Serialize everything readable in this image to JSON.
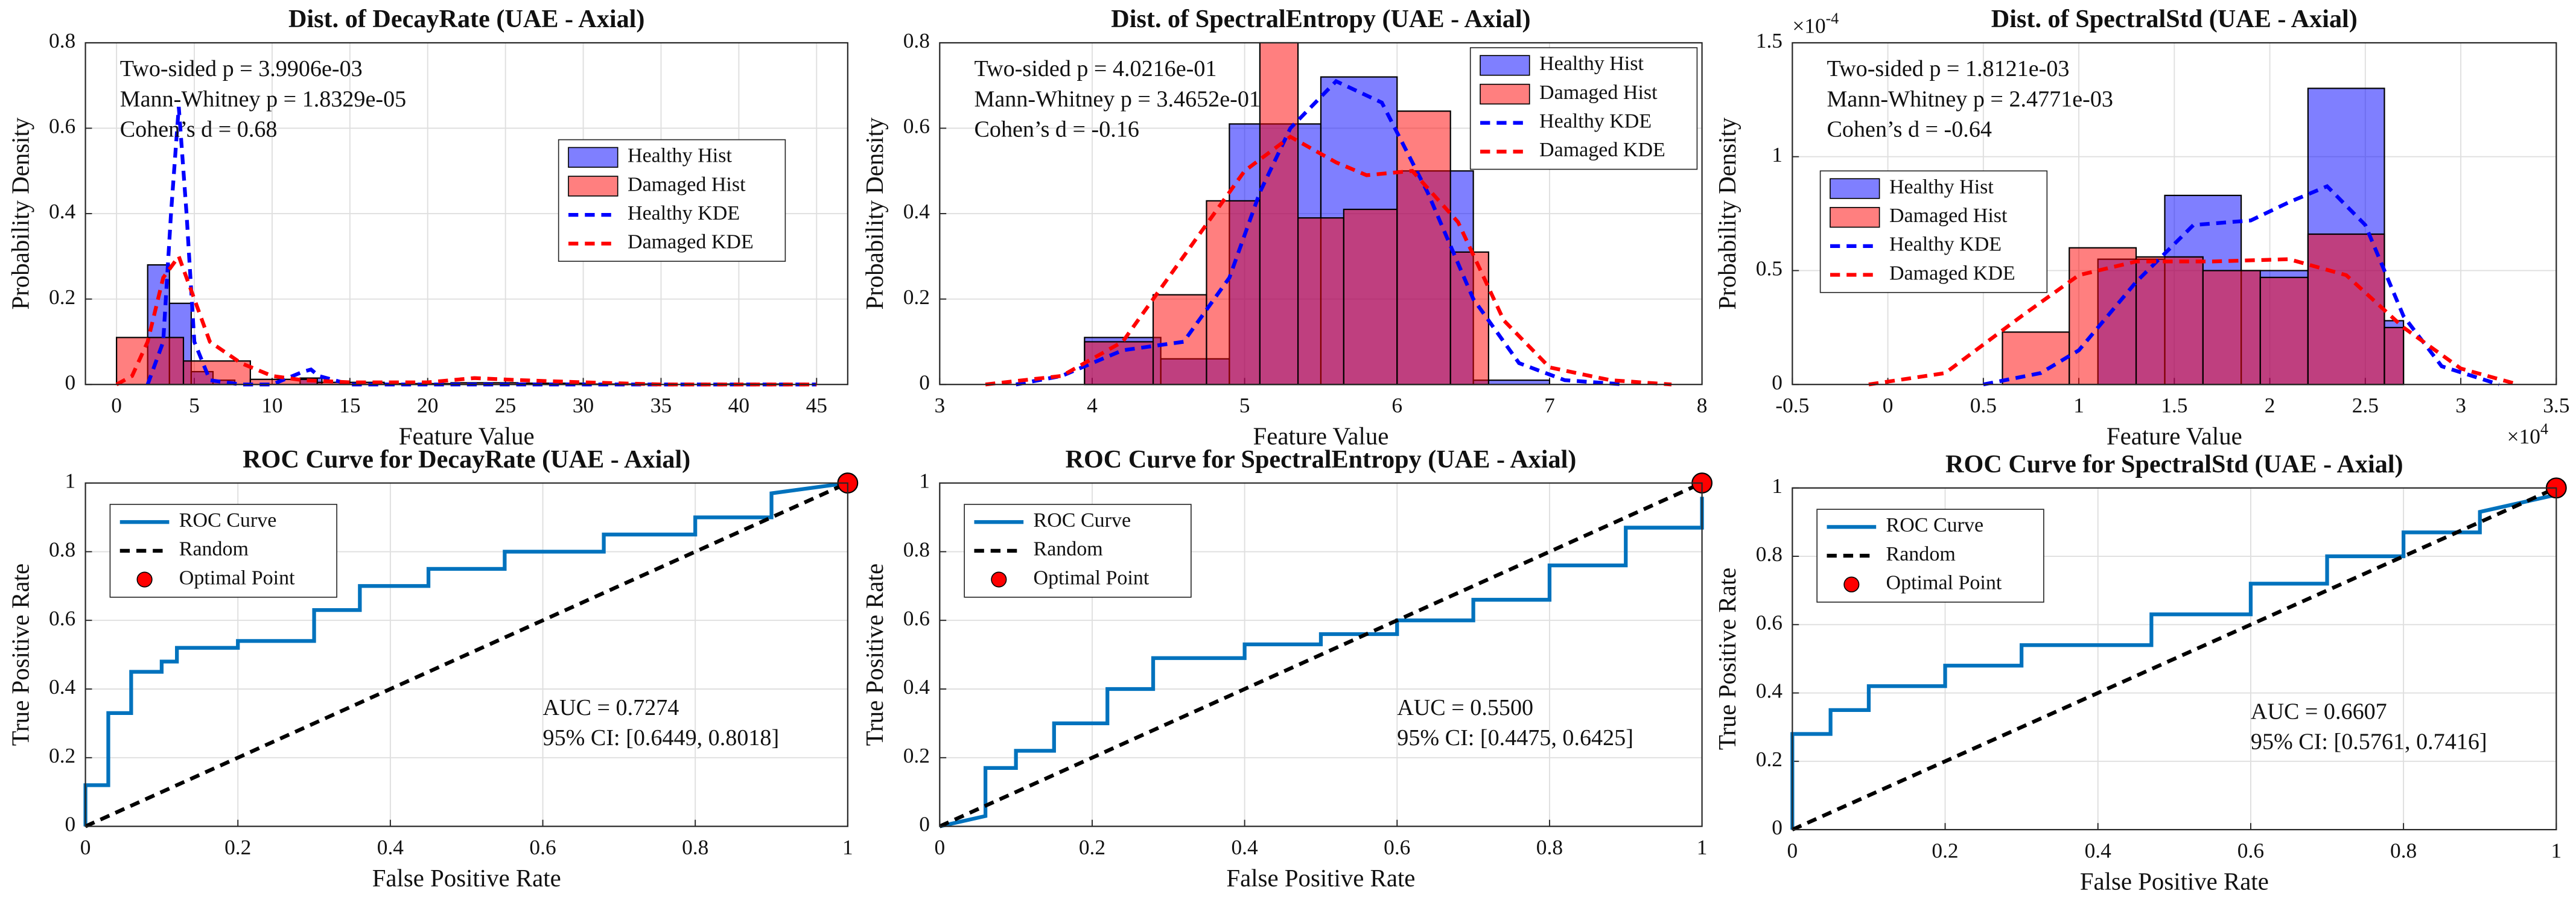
{
  "chart_data": [
    {
      "type": "histogram",
      "title": "Dist. of DecayRate (UAE - Axial)",
      "xlabel": "Feature Value",
      "ylabel": "Probability Density",
      "xlim": [
        -2,
        47
      ],
      "xticks": [
        0,
        5,
        10,
        15,
        20,
        25,
        30,
        35,
        40,
        45
      ],
      "ylim": [
        0,
        0.8
      ],
      "yticks": [
        0,
        0.2,
        0.4,
        0.6,
        0.8
      ],
      "grid": true,
      "legend": "east",
      "annotations": [
        "Two-sided p = 3.9906e-03",
        "Mann-Whitney p = 1.8329e-05",
        "Cohen’s d = 0.68"
      ],
      "series": [
        {
          "name": "Healthy Hist",
          "type": "bar",
          "color": "#0000ff",
          "bins": [
            2,
            3.4,
            4.8,
            6.2,
            7.6,
            9,
            10.4,
            11.8,
            13.2
          ],
          "values": [
            0.28,
            0.19,
            0.03,
            0.01,
            0,
            0,
            0,
            0.015
          ]
        },
        {
          "name": "Damaged Hist",
          "type": "bar",
          "color": "#ff0000",
          "bins": [
            0,
            4.3,
            8.6,
            12.9,
            17.2,
            21.5,
            25.8,
            30.1,
            34.4,
            38.7,
            43
          ],
          "values": [
            0.11,
            0.055,
            0.012,
            0.005,
            0.002,
            0.004,
            0.003,
            0.001,
            0,
            0.001
          ]
        },
        {
          "name": "Healthy KDE",
          "type": "line",
          "linestyle": "--",
          "color": "#0000ff",
          "x": [
            2,
            3,
            3.5,
            4,
            4.5,
            5,
            6,
            8,
            10,
            12,
            12.5,
            13,
            15,
            20,
            30,
            45
          ],
          "values": [
            0,
            0.1,
            0.4,
            0.65,
            0.4,
            0.1,
            0.01,
            0,
            0,
            0.03,
            0.035,
            0.02,
            0,
            0,
            0,
            0
          ]
        },
        {
          "name": "Damaged KDE",
          "type": "line",
          "linestyle": "--",
          "color": "#ff0000",
          "x": [
            0,
            1,
            2,
            3,
            4,
            5,
            6,
            8,
            10,
            12,
            15,
            20,
            23,
            26,
            30,
            35,
            40,
            45
          ],
          "values": [
            0,
            0.02,
            0.1,
            0.25,
            0.3,
            0.2,
            0.1,
            0.05,
            0.02,
            0.01,
            0.005,
            0.005,
            0.015,
            0.01,
            0.005,
            0,
            0,
            0
          ]
        }
      ]
    },
    {
      "type": "histogram",
      "title": "Dist. of SpectralEntropy (UAE - Axial)",
      "xlabel": "Feature Value",
      "ylabel": "Probability Density",
      "xlim": [
        3,
        8
      ],
      "xticks": [
        3,
        4,
        5,
        6,
        7,
        8
      ],
      "ylim": [
        0,
        0.8
      ],
      "yticks": [
        0,
        0.2,
        0.4,
        0.6,
        0.8
      ],
      "grid": true,
      "legend": "northeast",
      "annotations": [
        "Two-sided p = 4.0216e-01",
        "Mann-Whitney p = 3.4652e-01",
        "Cohen’s d = -0.16"
      ],
      "series": [
        {
          "name": "Healthy Hist",
          "type": "bar",
          "color": "#0000ff",
          "bins": [
            3.95,
            4.45,
            4.9,
            5.5,
            6.0,
            6.5,
            7.0
          ],
          "values": [
            0.11,
            0.06,
            0.61,
            0.72,
            0.5,
            0.01
          ]
        },
        {
          "name": "Damaged Hist",
          "type": "bar",
          "color": "#ff0000",
          "bins": [
            3.95,
            4.4,
            4.75,
            5.1,
            5.35,
            5.65,
            6.0,
            6.35,
            6.6
          ],
          "values": [
            0.1,
            0.21,
            0.43,
            0.8,
            0.39,
            0.41,
            0.64,
            0.31
          ]
        },
        {
          "name": "Healthy KDE",
          "type": "line",
          "linestyle": "--",
          "color": "#0000ff",
          "x": [
            3.5,
            3.8,
            4.2,
            4.6,
            4.9,
            5.1,
            5.3,
            5.6,
            5.9,
            6.2,
            6.5,
            6.8,
            7.1,
            7.5
          ],
          "values": [
            0,
            0.02,
            0.08,
            0.1,
            0.25,
            0.45,
            0.6,
            0.71,
            0.66,
            0.45,
            0.2,
            0.05,
            0.01,
            0
          ]
        },
        {
          "name": "Damaged KDE",
          "type": "line",
          "linestyle": "--",
          "color": "#ff0000",
          "x": [
            3.3,
            3.8,
            4.2,
            4.6,
            5.0,
            5.3,
            5.6,
            5.8,
            6.1,
            6.4,
            6.7,
            7.0,
            7.4,
            7.8
          ],
          "values": [
            0,
            0.02,
            0.1,
            0.3,
            0.5,
            0.58,
            0.52,
            0.49,
            0.5,
            0.38,
            0.15,
            0.04,
            0.01,
            0
          ]
        }
      ]
    },
    {
      "type": "histogram",
      "title": "Dist. of SpectralStd (UAE - Axial)",
      "xlabel": "Feature Value",
      "ylabel": "Probability Density",
      "xlim": [
        -0.5,
        3.5
      ],
      "xticks": [
        -0.5,
        0,
        0.5,
        1,
        1.5,
        2,
        2.5,
        3,
        3.5
      ],
      "ylim": [
        0,
        1.5
      ],
      "yticks": [
        0,
        0.5,
        1,
        1.5
      ],
      "grid": true,
      "legend": "west",
      "x_scale_label": {
        "base": "×10",
        "exponent": "4"
      },
      "y_scale_label": {
        "base": "×10",
        "exponent": "-4"
      },
      "annotations": [
        "Two-sided p = 1.8121e-03",
        "Mann-Whitney p = 2.4771e-03",
        "Cohen’s d = -0.64"
      ],
      "series": [
        {
          "name": "Healthy Hist",
          "type": "bar",
          "color": "#0000ff",
          "bins": [
            1.1,
            1.45,
            1.85,
            2.2,
            2.6,
            2.7
          ],
          "values": [
            0.55,
            0.83,
            0.5,
            1.3,
            0.28
          ]
        },
        {
          "name": "Damaged Hist",
          "type": "bar",
          "color": "#ff0000",
          "bins": [
            0.6,
            0.95,
            1.3,
            1.65,
            1.95,
            2.2,
            2.6,
            2.7
          ],
          "values": [
            0.23,
            0.6,
            0.56,
            0.5,
            0.47,
            0.66,
            0.25
          ]
        },
        {
          "name": "Healthy KDE",
          "type": "line",
          "linestyle": "--",
          "color": "#0000ff",
          "x": [
            0.5,
            0.8,
            1.0,
            1.3,
            1.6,
            1.9,
            2.1,
            2.3,
            2.5,
            2.7,
            2.9,
            3.2
          ],
          "values": [
            0,
            0.05,
            0.15,
            0.45,
            0.7,
            0.72,
            0.8,
            0.87,
            0.7,
            0.3,
            0.08,
            0
          ]
        },
        {
          "name": "Damaged KDE",
          "type": "line",
          "linestyle": "--",
          "color": "#ff0000",
          "x": [
            -0.1,
            0.3,
            0.7,
            1.0,
            1.3,
            1.7,
            2.1,
            2.4,
            2.7,
            3.0,
            3.3
          ],
          "values": [
            0,
            0.05,
            0.3,
            0.48,
            0.54,
            0.54,
            0.55,
            0.48,
            0.25,
            0.07,
            0
          ]
        }
      ]
    },
    {
      "type": "line",
      "title": "ROC Curve for DecayRate (UAE - Axial)",
      "xlabel": "False Positive Rate",
      "ylabel": "True Positive Rate",
      "xlim": [
        0,
        1
      ],
      "xticks": [
        0,
        0.2,
        0.4,
        0.6,
        0.8,
        1
      ],
      "ylim": [
        0,
        1
      ],
      "yticks": [
        0,
        0.2,
        0.4,
        0.6,
        0.8,
        1
      ],
      "grid": true,
      "legend": "northwest",
      "annotations": [
        "AUC = 0.7274",
        "95% CI: [0.6449, 0.8018]"
      ],
      "series": [
        {
          "name": "ROC Curve",
          "type": "line",
          "linestyle": "-",
          "color": "#0072bd",
          "x": [
            0,
            0,
            0.03,
            0.03,
            0.06,
            0.06,
            0.1,
            0.1,
            0.12,
            0.12,
            0.2,
            0.2,
            0.3,
            0.3,
            0.36,
            0.36,
            0.45,
            0.45,
            0.55,
            0.55,
            0.68,
            0.68,
            0.8,
            0.8,
            0.9,
            0.9,
            1
          ],
          "values": [
            0,
            0.12,
            0.12,
            0.33,
            0.33,
            0.45,
            0.45,
            0.48,
            0.48,
            0.52,
            0.52,
            0.54,
            0.54,
            0.63,
            0.63,
            0.7,
            0.7,
            0.75,
            0.75,
            0.8,
            0.8,
            0.85,
            0.85,
            0.9,
            0.9,
            0.97,
            1
          ]
        },
        {
          "name": "Random",
          "type": "line",
          "linestyle": "--",
          "color": "#000000",
          "x": [
            0,
            1
          ],
          "values": [
            0,
            1
          ]
        },
        {
          "name": "Optimal Point",
          "type": "scatter",
          "color": "#ff0000",
          "x": [
            1
          ],
          "values": [
            1
          ]
        }
      ]
    },
    {
      "type": "line",
      "title": "ROC Curve for SpectralEntropy (UAE - Axial)",
      "xlabel": "False Positive Rate",
      "ylabel": "True Positive Rate",
      "xlim": [
        0,
        1
      ],
      "xticks": [
        0,
        0.2,
        0.4,
        0.6,
        0.8,
        1
      ],
      "ylim": [
        0,
        1
      ],
      "yticks": [
        0,
        0.2,
        0.4,
        0.6,
        0.8,
        1
      ],
      "grid": true,
      "legend": "northwest",
      "annotations": [
        "AUC = 0.5500",
        "95% CI: [0.4475, 0.6425]"
      ],
      "series": [
        {
          "name": "ROC Curve",
          "type": "line",
          "linestyle": "-",
          "color": "#0072bd",
          "x": [
            0,
            0.06,
            0.06,
            0.1,
            0.1,
            0.15,
            0.15,
            0.22,
            0.22,
            0.28,
            0.28,
            0.4,
            0.4,
            0.5,
            0.5,
            0.6,
            0.6,
            0.7,
            0.7,
            0.8,
            0.8,
            0.9,
            0.9,
            1,
            1
          ],
          "values": [
            0,
            0.03,
            0.17,
            0.17,
            0.22,
            0.22,
            0.3,
            0.3,
            0.4,
            0.4,
            0.49,
            0.49,
            0.53,
            0.53,
            0.56,
            0.56,
            0.6,
            0.6,
            0.66,
            0.66,
            0.76,
            0.76,
            0.87,
            0.87,
            0.96
          ]
        },
        {
          "name": "Random",
          "type": "line",
          "linestyle": "--",
          "color": "#000000",
          "x": [
            0,
            1
          ],
          "values": [
            0,
            1
          ]
        },
        {
          "name": "Optimal Point",
          "type": "scatter",
          "color": "#ff0000",
          "x": [
            1
          ],
          "values": [
            1
          ]
        }
      ]
    },
    {
      "type": "line",
      "title": "ROC Curve for SpectralStd (UAE - Axial)",
      "xlabel": "False Positive Rate",
      "ylabel": "True Positive Rate",
      "xlim": [
        0,
        1
      ],
      "xticks": [
        0,
        0.2,
        0.4,
        0.6,
        0.8,
        1
      ],
      "ylim": [
        0,
        1
      ],
      "yticks": [
        0,
        0.2,
        0.4,
        0.6,
        0.8,
        1
      ],
      "grid": true,
      "legend": "northwest",
      "annotations": [
        "AUC = 0.6607",
        "95% CI: [0.5761, 0.7416]"
      ],
      "series": [
        {
          "name": "ROC Curve",
          "type": "line",
          "linestyle": "-",
          "color": "#0072bd",
          "x": [
            0,
            0,
            0.05,
            0.05,
            0.1,
            0.1,
            0.2,
            0.2,
            0.3,
            0.3,
            0.47,
            0.47,
            0.6,
            0.6,
            0.7,
            0.7,
            0.8,
            0.8,
            0.9,
            0.9,
            1
          ],
          "values": [
            0,
            0.28,
            0.28,
            0.35,
            0.35,
            0.42,
            0.42,
            0.48,
            0.48,
            0.54,
            0.54,
            0.63,
            0.63,
            0.72,
            0.72,
            0.8,
            0.8,
            0.87,
            0.87,
            0.93,
            0.98
          ]
        },
        {
          "name": "Random",
          "type": "line",
          "linestyle": "--",
          "color": "#000000",
          "x": [
            0,
            1
          ],
          "values": [
            0,
            1
          ]
        },
        {
          "name": "Optimal Point",
          "type": "scatter",
          "color": "#ff0000",
          "x": [
            1
          ],
          "values": [
            1
          ]
        }
      ]
    }
  ]
}
